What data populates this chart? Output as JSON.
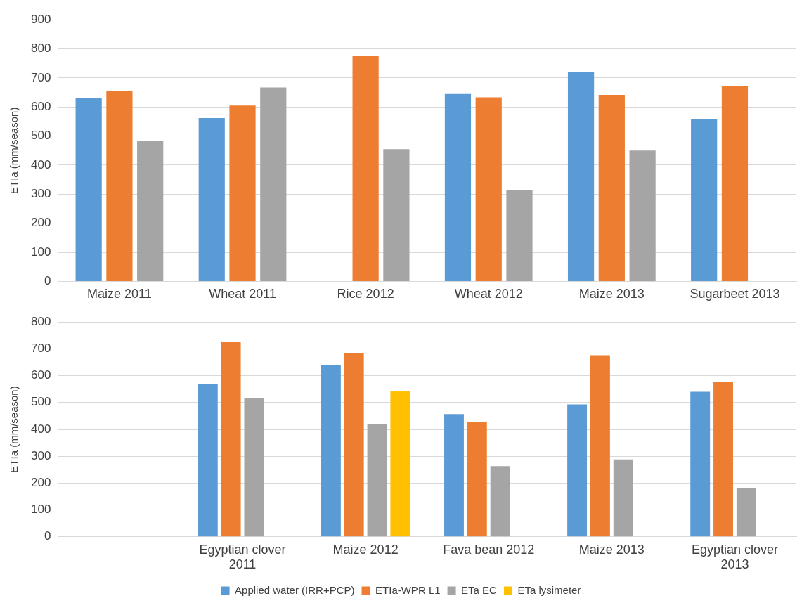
{
  "chart_data": [
    {
      "type": "bar",
      "ylabel": "ETIa (mm/season)",
      "categories": [
        "Maize 2011",
        "Wheat 2011",
        "Rice 2012",
        "Wheat 2012",
        "Maize 2013",
        "Sugarbeet 2013"
      ],
      "ylim": [
        0,
        900
      ],
      "yticks": [
        0,
        100,
        200,
        300,
        400,
        500,
        600,
        700,
        800,
        900
      ],
      "grid": "y",
      "legend": false,
      "series": [
        {
          "color": "#5b9bd5",
          "values": [
            632,
            562,
            null,
            645,
            720,
            558
          ]
        },
        {
          "color": "#ed7d31",
          "values": [
            655,
            605,
            777,
            633,
            642,
            673
          ]
        },
        {
          "color": "#a5a5a5",
          "values": [
            483,
            667,
            455,
            315,
            450,
            null
          ]
        }
      ]
    },
    {
      "type": "bar",
      "ylabel": "ETIa (mm/season)",
      "categories": [
        null,
        "Egyptian clover 2011",
        "Maize 2012",
        "Fava bean 2012",
        "Maize 2013",
        "Egyptian clover 2013"
      ],
      "ylim": [
        0,
        800
      ],
      "yticks": [
        0,
        100,
        200,
        300,
        400,
        500,
        600,
        700,
        800
      ],
      "grid": "y",
      "legend": "bottom",
      "series": [
        {
          "name": "Applied water (IRR+PCP)",
          "color": "#5b9bd5",
          "values": [
            null,
            570,
            640,
            457,
            493,
            540
          ]
        },
        {
          "name": "ETIa-WPR L1",
          "color": "#ed7d31",
          "values": [
            null,
            726,
            684,
            429,
            676,
            576
          ]
        },
        {
          "name": "ETa EC",
          "color": "#a5a5a5",
          "values": [
            null,
            515,
            421,
            263,
            288,
            183
          ]
        },
        {
          "name": "ETa lysimeter",
          "color": "#ffc000",
          "values": [
            null,
            null,
            543,
            null,
            null,
            null
          ]
        }
      ]
    }
  ]
}
